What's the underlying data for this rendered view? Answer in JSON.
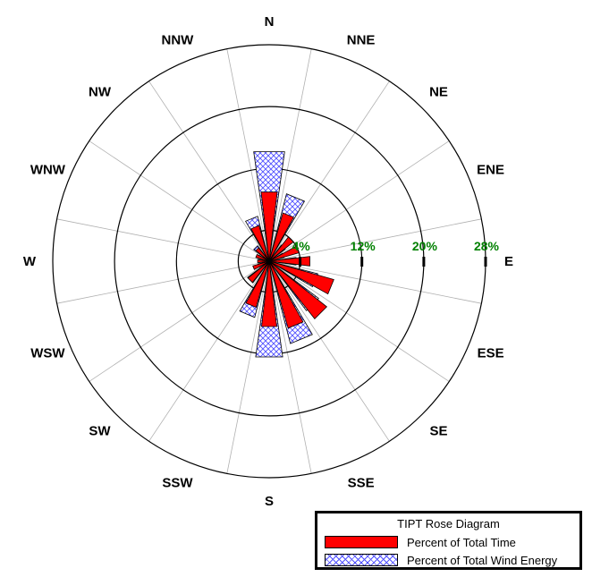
{
  "chart_data": {
    "type": "rose",
    "title": "TIPT Rose Diagram",
    "directions": [
      "N",
      "NNE",
      "NE",
      "ENE",
      "E",
      "ESE",
      "SE",
      "SSE",
      "S",
      "SSW",
      "SW",
      "WSW",
      "W",
      "WNW",
      "NW",
      "NNW"
    ],
    "ring_labels": [
      "4%",
      "12%",
      "20%",
      "28%"
    ],
    "ring_values": [
      4,
      12,
      20,
      28
    ],
    "rmax": 28,
    "series": [
      {
        "name": "Percent of Total Wind Energy",
        "values": [
          14.3,
          9.0,
          2.6,
          2.0,
          3.5,
          6.5,
          8.0,
          11.0,
          12.5,
          7.5,
          3.5,
          1.5,
          1.3,
          1.5,
          2.5,
          6.0
        ],
        "color": "#8080ff"
      },
      {
        "name": "Percent of Total Time",
        "values": [
          9.0,
          6.5,
          4.0,
          4.0,
          5.3,
          8.7,
          9.5,
          9.0,
          8.5,
          6.2,
          3.5,
          2.2,
          1.5,
          1.8,
          2.2,
          4.8
        ],
        "color": "#ff0000"
      }
    ],
    "grid": true,
    "legend_position": "bottom-right"
  }
}
